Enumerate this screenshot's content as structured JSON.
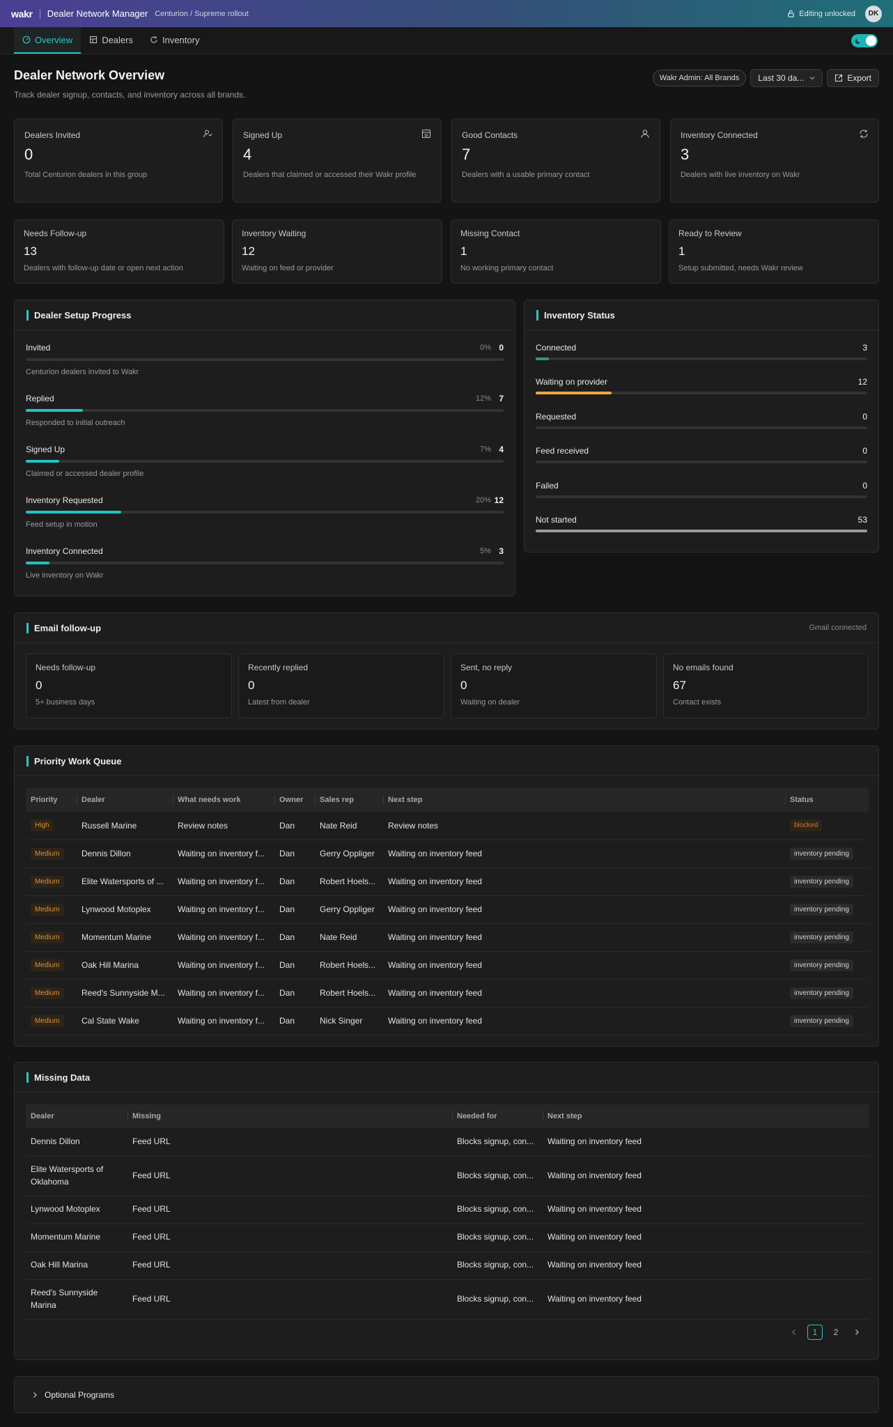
{
  "topbar": {
    "logo": "wakr",
    "title": "Dealer Network Manager",
    "crumb": "Centurion / Supreme rollout",
    "edit_status": "Editing unlocked",
    "avatar": "DK"
  },
  "tabs": [
    {
      "label": "Overview",
      "icon": "overview-icon"
    },
    {
      "label": "Dealers",
      "icon": "building-icon"
    },
    {
      "label": "Inventory",
      "icon": "refresh-icon"
    }
  ],
  "header": {
    "title": "Dealer Network Overview",
    "subtitle": "Track dealer signup, contacts, and inventory across all brands.",
    "brand_filter": "Wakr Admin: All Brands",
    "date_range": "Last 30 da...",
    "export_label": "Export"
  },
  "kpis": [
    {
      "label": "Dealers Invited",
      "value": "0",
      "desc": "Total Centurion dealers in this group",
      "icon": "user-invite-icon"
    },
    {
      "label": "Signed Up",
      "value": "4",
      "desc": "Dealers that claimed or accessed their Wakr profile",
      "icon": "storefront-icon"
    },
    {
      "label": "Good Contacts",
      "value": "7",
      "desc": "Dealers with a usable primary contact",
      "icon": "user-icon"
    },
    {
      "label": "Inventory Connected",
      "value": "3",
      "desc": "Dealers with live inventory on Wakr",
      "icon": "sync-icon"
    }
  ],
  "secondary_kpis": [
    {
      "label": "Needs Follow-up",
      "value": "13",
      "desc": "Dealers with follow-up date or open next action"
    },
    {
      "label": "Inventory Waiting",
      "value": "12",
      "desc": "Waiting on feed or provider"
    },
    {
      "label": "Missing Contact",
      "value": "1",
      "desc": "No working primary contact"
    },
    {
      "label": "Ready to Review",
      "value": "1",
      "desc": "Setup submitted, needs Wakr review"
    }
  ],
  "setup_progress": {
    "title": "Dealer Setup Progress",
    "rows": [
      {
        "name": "Invited",
        "pct": "0%",
        "count": "0",
        "fraction": 0.0,
        "note": "Centurion dealers invited to Wakr"
      },
      {
        "name": "Replied",
        "pct": "12%",
        "count": "7",
        "fraction": 0.12,
        "note": "Responded to initial outreach"
      },
      {
        "name": "Signed Up",
        "pct": "7%",
        "count": "4",
        "fraction": 0.07,
        "note": "Claimed or accessed dealer profile"
      },
      {
        "name": "Inventory Requested",
        "pct": "20%",
        "count": "12",
        "fraction": 0.2,
        "note": "Feed setup in motion"
      },
      {
        "name": "Inventory Connected",
        "pct": "5%",
        "count": "3",
        "fraction": 0.05,
        "note": "Live inventory on Wakr"
      }
    ]
  },
  "inventory_status": {
    "title": "Inventory Status",
    "rows": [
      {
        "name": "Connected",
        "count": "3",
        "fraction": 0.04,
        "color": "#2e9a7a"
      },
      {
        "name": "Waiting on provider",
        "count": "12",
        "fraction": 0.23,
        "color": "#f0a83a"
      },
      {
        "name": "Requested",
        "count": "0",
        "fraction": 0.0,
        "color": "#888888"
      },
      {
        "name": "Feed received",
        "count": "0",
        "fraction": 0.0,
        "color": "#888888"
      },
      {
        "name": "Failed",
        "count": "0",
        "fraction": 0.0,
        "color": "#888888"
      },
      {
        "name": "Not started",
        "count": "53",
        "fraction": 1.0,
        "color": "#9a9a9a"
      }
    ]
  },
  "email": {
    "title": "Email follow-up",
    "status": "Gmail connected",
    "cards": [
      {
        "label": "Needs follow-up",
        "value": "0",
        "desc": "5+ business days"
      },
      {
        "label": "Recently replied",
        "value": "0",
        "desc": "Latest from dealer"
      },
      {
        "label": "Sent, no reply",
        "value": "0",
        "desc": "Waiting on dealer"
      },
      {
        "label": "No emails found",
        "value": "67",
        "desc": "Contact exists"
      }
    ]
  },
  "queue": {
    "title": "Priority Work Queue",
    "columns": [
      "Priority",
      "Dealer",
      "What needs work",
      "Owner",
      "Sales rep",
      "Next step",
      "Status"
    ],
    "rows": [
      {
        "priority": "High",
        "dealer": "Russell Marine",
        "work": "Review notes",
        "owner": "Dan",
        "rep": "Nate Reid",
        "next": "Review notes",
        "status": "blocked"
      },
      {
        "priority": "Medium",
        "dealer": "Dennis Dillon",
        "work": "Waiting on inventory f...",
        "owner": "Dan",
        "rep": "Gerry Oppliger",
        "next": "Waiting on inventory feed",
        "status": "inventory pending"
      },
      {
        "priority": "Medium",
        "dealer": "Elite Watersports of ...",
        "work": "Waiting on inventory f...",
        "owner": "Dan",
        "rep": "Robert Hoels...",
        "next": "Waiting on inventory feed",
        "status": "inventory pending"
      },
      {
        "priority": "Medium",
        "dealer": "Lynwood Motoplex",
        "work": "Waiting on inventory f...",
        "owner": "Dan",
        "rep": "Gerry Oppliger",
        "next": "Waiting on inventory feed",
        "status": "inventory pending"
      },
      {
        "priority": "Medium",
        "dealer": "Momentum Marine",
        "work": "Waiting on inventory f...",
        "owner": "Dan",
        "rep": "Nate Reid",
        "next": "Waiting on inventory feed",
        "status": "inventory pending"
      },
      {
        "priority": "Medium",
        "dealer": "Oak Hill Marina",
        "work": "Waiting on inventory f...",
        "owner": "Dan",
        "rep": "Robert Hoels...",
        "next": "Waiting on inventory feed",
        "status": "inventory pending"
      },
      {
        "priority": "Medium",
        "dealer": "Reed's Sunnyside M...",
        "work": "Waiting on inventory f...",
        "owner": "Dan",
        "rep": "Robert Hoels...",
        "next": "Waiting on inventory feed",
        "status": "inventory pending"
      },
      {
        "priority": "Medium",
        "dealer": "Cal State Wake",
        "work": "Waiting on inventory f...",
        "owner": "Dan",
        "rep": "Nick Singer",
        "next": "Waiting on inventory feed",
        "status": "inventory pending"
      }
    ]
  },
  "missing": {
    "title": "Missing Data",
    "columns": [
      "Dealer",
      "Missing",
      "Needed for",
      "Next step"
    ],
    "rows": [
      {
        "dealer": "Dennis Dillon",
        "missing": "Feed URL",
        "needed": "Blocks signup, con...",
        "next": "Waiting on inventory feed"
      },
      {
        "dealer": "Elite Watersports of Oklahoma",
        "missing": "Feed URL",
        "needed": "Blocks signup, con...",
        "next": "Waiting on inventory feed"
      },
      {
        "dealer": "Lynwood Motoplex",
        "missing": "Feed URL",
        "needed": "Blocks signup, con...",
        "next": "Waiting on inventory feed"
      },
      {
        "dealer": "Momentum Marine",
        "missing": "Feed URL",
        "needed": "Blocks signup, con...",
        "next": "Waiting on inventory feed"
      },
      {
        "dealer": "Oak Hill Marina",
        "missing": "Feed URL",
        "needed": "Blocks signup, con...",
        "next": "Waiting on inventory feed"
      },
      {
        "dealer": "Reed's Sunnyside Marina",
        "missing": "Feed URL",
        "needed": "Blocks signup, con...",
        "next": "Waiting on inventory feed"
      }
    ],
    "pages": [
      "1",
      "2"
    ],
    "current_page": "1"
  },
  "optional": {
    "label": "Optional Programs"
  },
  "colors": {
    "accent": "#2ec4c4",
    "warning": "#d4923b"
  }
}
